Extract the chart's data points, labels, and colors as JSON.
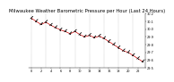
{
  "title": "Milwaukee Weather Barometric Pressure per Hour (Last 24 Hours)",
  "background_color": "#ffffff",
  "line_color": "#cc0000",
  "marker_color": "#000000",
  "grid_color": "#888888",
  "hours": [
    0,
    1,
    2,
    3,
    4,
    5,
    6,
    7,
    8,
    9,
    10,
    11,
    12,
    13,
    14,
    15,
    16,
    17,
    18,
    19,
    20,
    21,
    22,
    23
  ],
  "pressure": [
    30.14,
    30.1,
    30.06,
    30.09,
    30.05,
    30.02,
    29.99,
    29.97,
    29.94,
    29.97,
    29.93,
    29.9,
    29.92,
    29.89,
    29.91,
    29.88,
    29.84,
    29.8,
    29.76,
    29.72,
    29.7,
    29.66,
    29.62,
    29.58
  ],
  "ylim_min": 29.5,
  "ylim_max": 30.2,
  "title_fontsize": 3.8,
  "tick_fontsize": 2.5,
  "ytick_values": [
    29.5,
    29.6,
    29.7,
    29.8,
    29.9,
    30.0,
    30.1,
    30.2
  ],
  "xtick_values": [
    0,
    2,
    4,
    6,
    8,
    10,
    12,
    14,
    16,
    18,
    20,
    22
  ]
}
